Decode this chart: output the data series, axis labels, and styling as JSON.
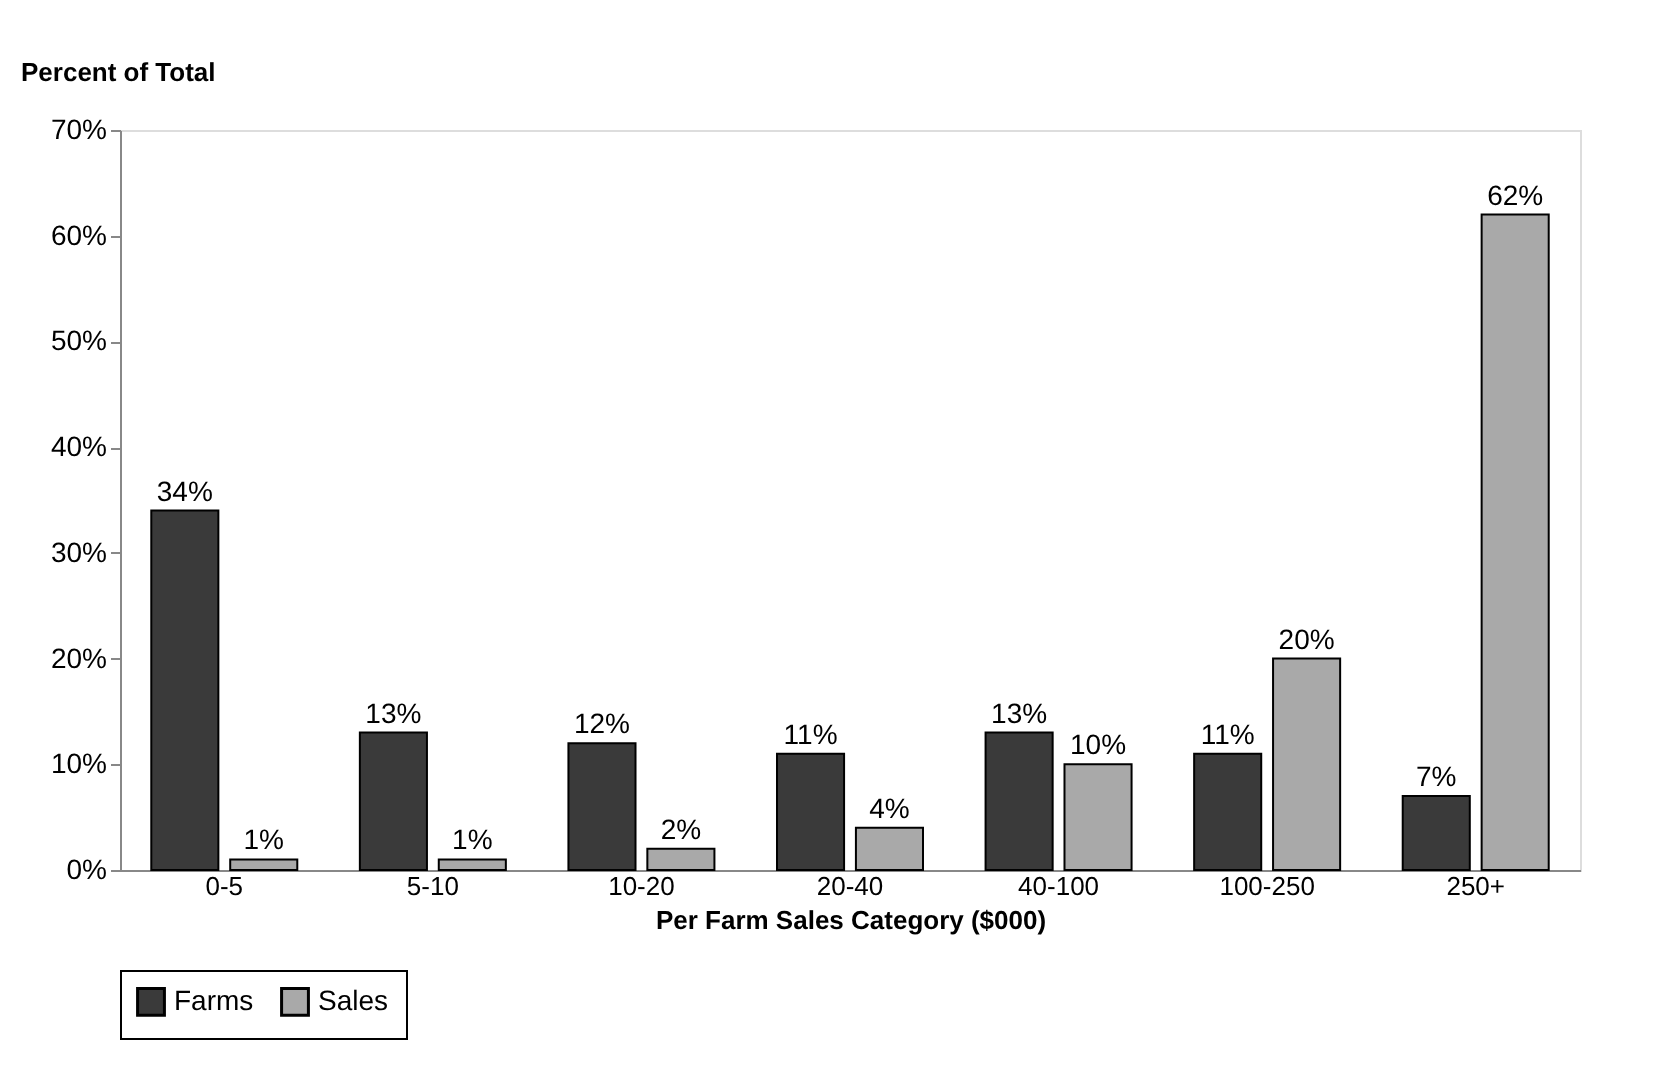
{
  "chart_data": {
    "type": "bar",
    "xlabel": "Per Farm Sales Category ($000)",
    "ylabel": "Percent of Total",
    "categories": [
      "0-5",
      "5-10",
      "10-20",
      "20-40",
      "40-100",
      "100-250",
      "250+"
    ],
    "series": [
      {
        "name": "Farms",
        "color": "#3a3a3a",
        "values": [
          34,
          13,
          12,
          11,
          13,
          11,
          7
        ],
        "value_labels": [
          "34%",
          "13%",
          "12%",
          "11%",
          "13%",
          "11%",
          "7%"
        ]
      },
      {
        "name": "Sales",
        "color": "#a9a9a9",
        "values": [
          1,
          1,
          2,
          4,
          10,
          20,
          62
        ],
        "value_labels": [
          "1%",
          "1%",
          "2%",
          "4%",
          "10%",
          "20%",
          "62%"
        ]
      }
    ],
    "ylim": [
      0,
      70
    ],
    "yticks": [
      {
        "value": 0,
        "label": "0%"
      },
      {
        "value": 10,
        "label": "10%"
      },
      {
        "value": 20,
        "label": "20%"
      },
      {
        "value": 30,
        "label": "30%"
      },
      {
        "value": 40,
        "label": "40%"
      },
      {
        "value": 50,
        "label": "50%"
      },
      {
        "value": 60,
        "label": "60%"
      },
      {
        "value": 70,
        "label": "70%"
      }
    ],
    "grid": false,
    "legend": "bottom"
  }
}
